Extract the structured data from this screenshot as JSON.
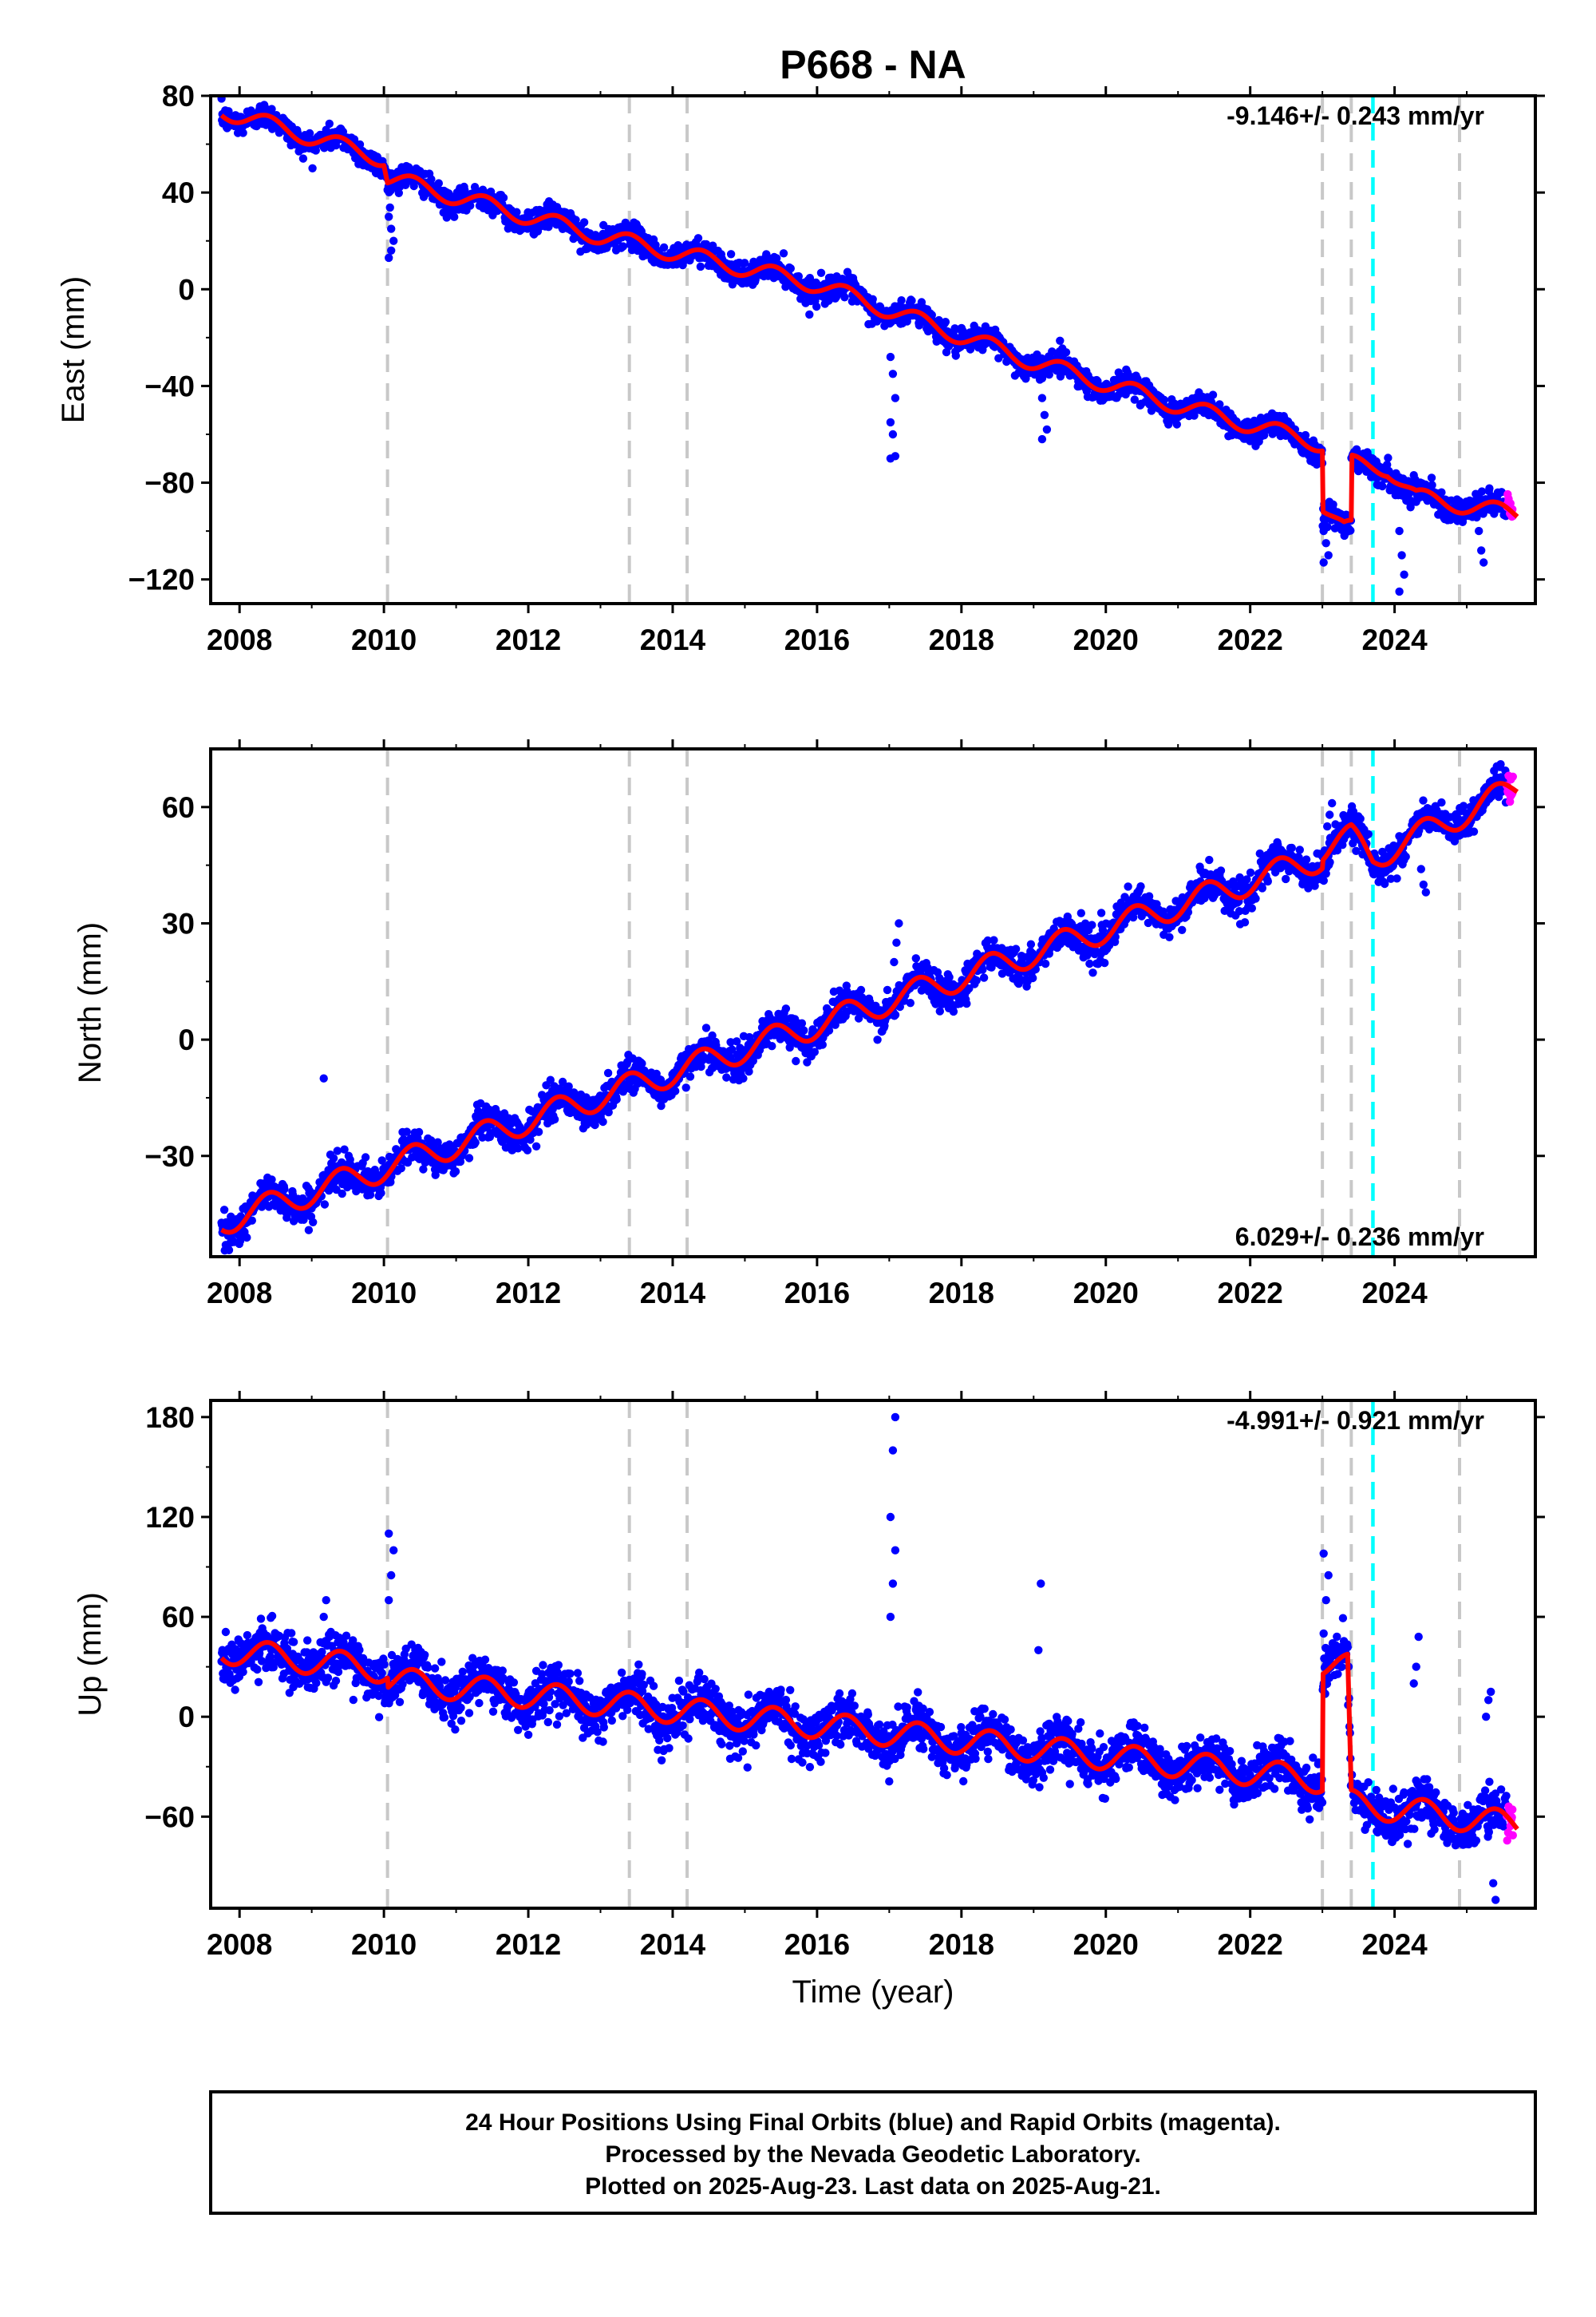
{
  "title": "P668 - NA",
  "colors": {
    "final_orbits": "#0000ff",
    "rapid_orbits": "#ff00ff",
    "model": "#ff0000",
    "event_line": "#c8c8c8",
    "antenna_line": "#00ffff"
  },
  "chart_data": [
    {
      "type": "scatter",
      "ylabel": "East (mm)",
      "ylim": [
        -130,
        80
      ],
      "yticks": [
        80,
        40,
        0,
        -40,
        -80,
        -120
      ],
      "xlim": [
        2007.6,
        2025.95
      ],
      "xticks": [
        2008,
        2010,
        2012,
        2014,
        2016,
        2018,
        2020,
        2022,
        2024
      ],
      "rate_text": "-9.146+/- 0.243 mm/yr",
      "rate_position": "top-right",
      "trend": [
        [
          2007.75,
          74
        ],
        [
          2010.0,
          54
        ],
        [
          2010.05,
          46
        ],
        [
          2013.0,
          22
        ],
        [
          2016.0,
          2
        ],
        [
          2019.0,
          -30
        ],
        [
          2021.0,
          -48
        ],
        [
          2023.0,
          -64
        ],
        [
          2023.0,
          -89
        ],
        [
          2023.3,
          -99
        ],
        [
          2023.4,
          -99
        ],
        [
          2023.4,
          -72
        ],
        [
          2023.9,
          -74
        ],
        [
          2024.3,
          -86
        ],
        [
          2025.7,
          -93
        ]
      ],
      "annual_amplitude": 3.5,
      "scatter_sd": 2.5,
      "spikes": [
        {
          "x": 2010.1,
          "values": [
            30,
            25,
            20,
            13,
            16
          ]
        },
        {
          "x": 2017.05,
          "values": [
            -28,
            -35,
            -45,
            -55,
            -60,
            -69,
            -70
          ]
        },
        {
          "x": 2019.15,
          "values": [
            -45,
            -52,
            -58,
            -62
          ]
        },
        {
          "x": 2023.05,
          "values": [
            -100,
            -105,
            -110,
            -113
          ]
        },
        {
          "x": 2024.1,
          "values": [
            -100,
            -110,
            -118,
            -125
          ]
        },
        {
          "x": 2025.2,
          "values": [
            -100,
            -108,
            -113
          ]
        }
      ],
      "vlines": [
        2010.05,
        2013.4,
        2014.2,
        2023.0,
        2023.4,
        2024.9
      ],
      "antenna_vline": 2023.7
    },
    {
      "type": "scatter",
      "ylabel": "North (mm)",
      "ylim": [
        -56,
        75
      ],
      "yticks": [
        60,
        30,
        0,
        -30
      ],
      "xlim": [
        2007.6,
        2025.95
      ],
      "xticks": [
        2008,
        2010,
        2012,
        2014,
        2016,
        2018,
        2020,
        2022,
        2024
      ],
      "rate_text": "6.029+/- 0.236 mm/yr",
      "rate_position": "bottom-right",
      "trend": [
        [
          2007.75,
          -47
        ],
        [
          2023.0,
          47
        ],
        [
          2023.0,
          49
        ],
        [
          2023.4,
          52
        ],
        [
          2023.7,
          47
        ],
        [
          2025.7,
          65
        ]
      ],
      "annual_amplitude": 3.5,
      "scatter_sd": 2.2,
      "spikes": [
        {
          "x": 2009.2,
          "values": [
            -10
          ]
        },
        {
          "x": 2017.1,
          "values": [
            20,
            25,
            30
          ]
        },
        {
          "x": 2023.1,
          "values": [
            55,
            58,
            61
          ]
        },
        {
          "x": 2024.4,
          "values": [
            44,
            40,
            38
          ]
        }
      ],
      "vlines": [
        2010.05,
        2013.4,
        2014.2,
        2023.0,
        2023.4,
        2024.9
      ],
      "antenna_vline": 2023.7
    },
    {
      "type": "scatter",
      "ylabel": "Up (mm)",
      "ylim": [
        -115,
        190
      ],
      "yticks": [
        180,
        120,
        60,
        0,
        -60
      ],
      "xlim": [
        2007.6,
        2025.95
      ],
      "xticks": [
        2008,
        2010,
        2012,
        2014,
        2016,
        2018,
        2020,
        2022,
        2024
      ],
      "xlabel": "Time (year)",
      "rate_text": "-4.991+/- 0.921 mm/yr",
      "rate_position": "top-right",
      "trend": [
        [
          2007.75,
          40
        ],
        [
          2010.05,
          28
        ],
        [
          2010.05,
          22
        ],
        [
          2016.0,
          -5
        ],
        [
          2023.0,
          -38
        ],
        [
          2023.0,
          32
        ],
        [
          2023.35,
          30
        ],
        [
          2023.4,
          -52
        ],
        [
          2025.7,
          -65
        ]
      ],
      "annual_amplitude": 8,
      "scatter_sd": 7,
      "spikes": [
        {
          "x": 2009.2,
          "values": [
            60,
            70
          ]
        },
        {
          "x": 2010.1,
          "values": [
            70,
            85,
            100,
            110
          ]
        },
        {
          "x": 2017.05,
          "values": [
            60,
            80,
            100,
            120,
            160,
            180
          ]
        },
        {
          "x": 2019.1,
          "values": [
            40,
            80
          ]
        },
        {
          "x": 2023.05,
          "values": [
            50,
            70,
            85,
            98
          ]
        },
        {
          "x": 2024.3,
          "values": [
            20,
            30,
            48
          ]
        },
        {
          "x": 2025.3,
          "values": [
            0,
            10,
            15
          ]
        },
        {
          "x": 2025.4,
          "values": [
            -100,
            -110
          ]
        }
      ],
      "vlines": [
        2010.05,
        2013.4,
        2014.2,
        2023.0,
        2023.4,
        2024.9
      ],
      "antenna_vline": 2023.7
    }
  ],
  "footer": {
    "line1": "24 Hour Positions Using Final Orbits (blue) and Rapid Orbits (magenta).",
    "line2": "Processed by the Nevada Geodetic Laboratory.",
    "line3": "Plotted on 2025-Aug-23. Last data on 2025-Aug-21."
  }
}
